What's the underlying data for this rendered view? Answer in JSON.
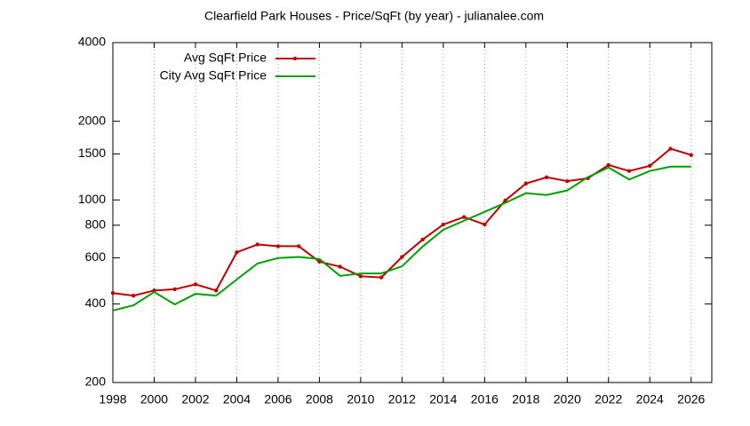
{
  "chart_data": {
    "type": "line",
    "title": "Clearfield Park Houses - Price/SqFt (by year) - julianalee.com",
    "x": [
      1998,
      1999,
      2000,
      2001,
      2002,
      2003,
      2004,
      2005,
      2006,
      2007,
      2008,
      2009,
      2010,
      2011,
      2012,
      2013,
      2014,
      2015,
      2016,
      2017,
      2018,
      2019,
      2020,
      2021,
      2022,
      2023,
      2024,
      2025,
      2026
    ],
    "series": [
      {
        "name": "Avg SqFt Price",
        "color": "#c00000",
        "markers": true,
        "values": [
          440,
          430,
          450,
          455,
          475,
          450,
          630,
          675,
          665,
          665,
          580,
          555,
          510,
          505,
          605,
          705,
          805,
          860,
          805,
          995,
          1155,
          1220,
          1180,
          1210,
          1360,
          1290,
          1350,
          1570,
          1485
        ]
      },
      {
        "name": "City Avg SqFt Price",
        "color": "#00a000",
        "markers": false,
        "values": [
          377,
          395,
          444,
          398,
          437,
          430,
          496,
          571,
          599,
          605,
          594,
          512,
          523,
          523,
          557,
          663,
          769,
          832,
          900,
          974,
          1061,
          1044,
          1087,
          1222,
          1330,
          1197,
          1290,
          1341,
          1341
        ]
      }
    ],
    "xlim": [
      1998,
      2027
    ],
    "xticks": [
      1998,
      2000,
      2002,
      2004,
      2006,
      2008,
      2010,
      2012,
      2014,
      2016,
      2018,
      2020,
      2022,
      2024,
      2026
    ],
    "ylim": [
      200,
      4000
    ],
    "yticks": [
      200,
      400,
      600,
      800,
      1000,
      1500,
      2000,
      4000
    ],
    "log_y": true,
    "xgrid": true,
    "legend": "top-left"
  }
}
